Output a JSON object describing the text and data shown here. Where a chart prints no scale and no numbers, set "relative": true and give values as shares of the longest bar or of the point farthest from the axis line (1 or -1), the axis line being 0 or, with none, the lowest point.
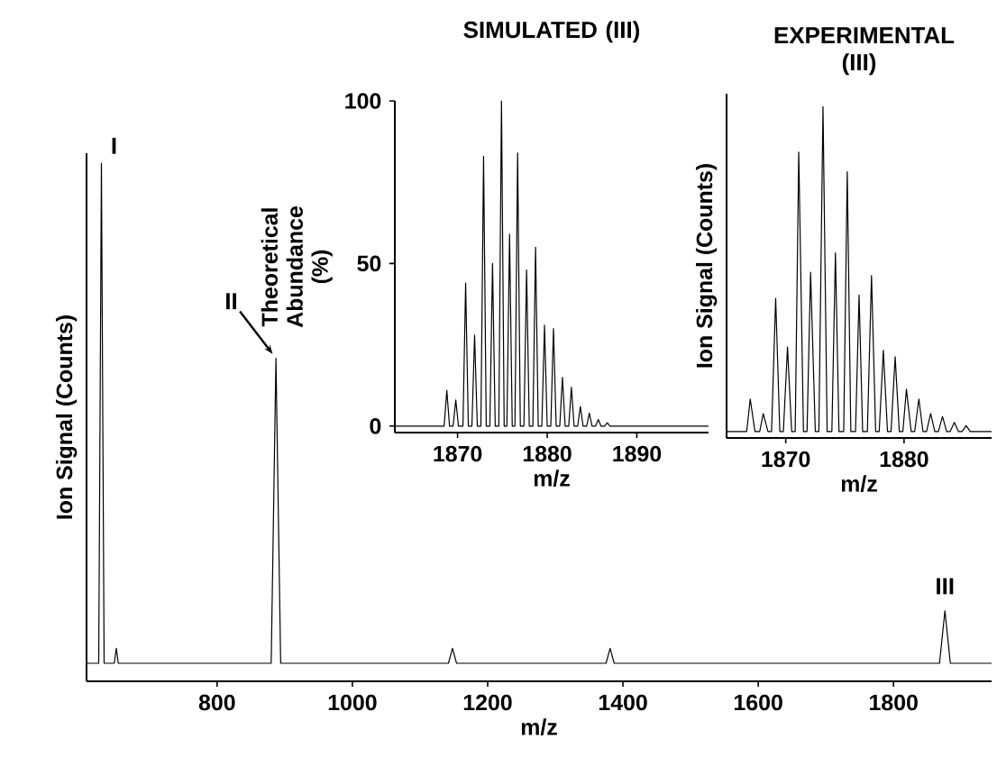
{
  "chart_data": [
    {
      "type": "line",
      "relative": true,
      "xlabel": "m/z",
      "ylabel": "Ion Signal (Counts)",
      "xlim": [
        607,
        1945
      ],
      "xticks": [
        800,
        1000,
        1200,
        1400,
        1600,
        1800
      ],
      "x": [
        607,
        625,
        629,
        633,
        648,
        651,
        654,
        880,
        887,
        894,
        1142,
        1148,
        1154,
        1375,
        1381,
        1387,
        1868,
        1876,
        1884,
        1945
      ],
      "series": [
        {
          "color": "#000000",
          "values": [
            0,
            0,
            1.0,
            0,
            0,
            0.03,
            0,
            0,
            0.61,
            0,
            0,
            0.03,
            0,
            0,
            0.03,
            0,
            0,
            0.105,
            0,
            0
          ]
        }
      ],
      "annotations": [
        {
          "text": "I",
          "x": 629,
          "y": 1.0
        },
        {
          "text": "II",
          "x": 887,
          "y": 0.61
        },
        {
          "text": "III",
          "x": 1876,
          "y": 0.105
        }
      ]
    },
    {
      "type": "line",
      "title": "SIMULATED (III)",
      "xlabel": "m/z",
      "ylabel": "Theoretical Abundance (%)",
      "xlim": [
        1863,
        1898
      ],
      "xticks": [
        1870,
        1880,
        1890
      ],
      "ylim": [
        -2,
        100
      ],
      "yticks": [
        0,
        50,
        100
      ],
      "x": [
        1863,
        1868.5,
        1868.8,
        1869.1,
        1869.5,
        1869.8,
        1870.1,
        1870.6,
        1870.9,
        1871.2,
        1871.6,
        1871.9,
        1872.2,
        1872.6,
        1872.9,
        1873.2,
        1873.6,
        1873.9,
        1874.2,
        1874.6,
        1874.9,
        1875.2,
        1875.5,
        1875.8,
        1876.1,
        1876.4,
        1876.7,
        1877.0,
        1877.4,
        1877.7,
        1878.0,
        1878.4,
        1878.7,
        1879.0,
        1879.4,
        1879.7,
        1880.0,
        1880.4,
        1880.7,
        1881.0,
        1881.4,
        1881.7,
        1882.0,
        1882.4,
        1882.7,
        1883.0,
        1883.4,
        1883.7,
        1884.0,
        1884.4,
        1884.7,
        1885.0,
        1885.4,
        1885.7,
        1886.0,
        1886.4,
        1886.7,
        1887.0,
        1898
      ],
      "series": [
        {
          "color": "#000000",
          "values": [
            0,
            0,
            11,
            0,
            0,
            8,
            0,
            0,
            44,
            0,
            0,
            28,
            0,
            0,
            83,
            0,
            0,
            50,
            0,
            0,
            100,
            0,
            0,
            59,
            0,
            0,
            84,
            0,
            0,
            48,
            0,
            0,
            55,
            0,
            0,
            31,
            0,
            0,
            30,
            0,
            0,
            15,
            0,
            0,
            12,
            0,
            0,
            6,
            0,
            0,
            4,
            0,
            0,
            2,
            0,
            0,
            1,
            0,
            0
          ]
        }
      ]
    },
    {
      "type": "line",
      "relative": true,
      "title": "EXPERIMENTAL (III)",
      "xlabel": "m/z",
      "ylabel": "Ion Signal (Counts)",
      "xlim": [
        1865,
        1887.4
      ],
      "xticks": [
        1870,
        1880
      ],
      "x": [
        1865,
        1866.7,
        1867,
        1867.4,
        1867.8,
        1868.1,
        1868.5,
        1868.8,
        1869.15,
        1869.5,
        1869.8,
        1870.15,
        1870.5,
        1870.8,
        1871.1,
        1871.5,
        1871.8,
        1872.1,
        1872.5,
        1872.8,
        1873.15,
        1873.5,
        1873.9,
        1874.2,
        1874.5,
        1874.9,
        1875.2,
        1875.5,
        1875.9,
        1876.2,
        1876.5,
        1876.9,
        1877.25,
        1877.6,
        1877.9,
        1878.25,
        1878.6,
        1878.9,
        1879.25,
        1879.6,
        1879.9,
        1880.2,
        1880.6,
        1880.9,
        1881.25,
        1881.6,
        1881.9,
        1882.25,
        1882.6,
        1882.9,
        1883.25,
        1883.6,
        1883.9,
        1884.25,
        1884.6,
        1884.9,
        1885.25,
        1885.6,
        1887.4
      ],
      "series": [
        {
          "color": "#000000",
          "values": [
            0,
            0,
            0.1,
            0,
            0,
            0.055,
            0,
            0,
            0.41,
            0,
            0,
            0.26,
            0,
            0,
            0.86,
            0,
            0,
            0.49,
            0,
            0,
            1.0,
            0,
            0,
            0.55,
            0,
            0,
            0.8,
            0,
            0,
            0.42,
            0,
            0,
            0.48,
            0,
            0,
            0.25,
            0,
            0,
            0.23,
            0,
            0,
            0.13,
            0,
            0,
            0.1,
            0,
            0,
            0.055,
            0,
            0,
            0.046,
            0,
            0,
            0.028,
            0,
            0,
            0.018,
            0,
            0
          ]
        }
      ]
    }
  ]
}
